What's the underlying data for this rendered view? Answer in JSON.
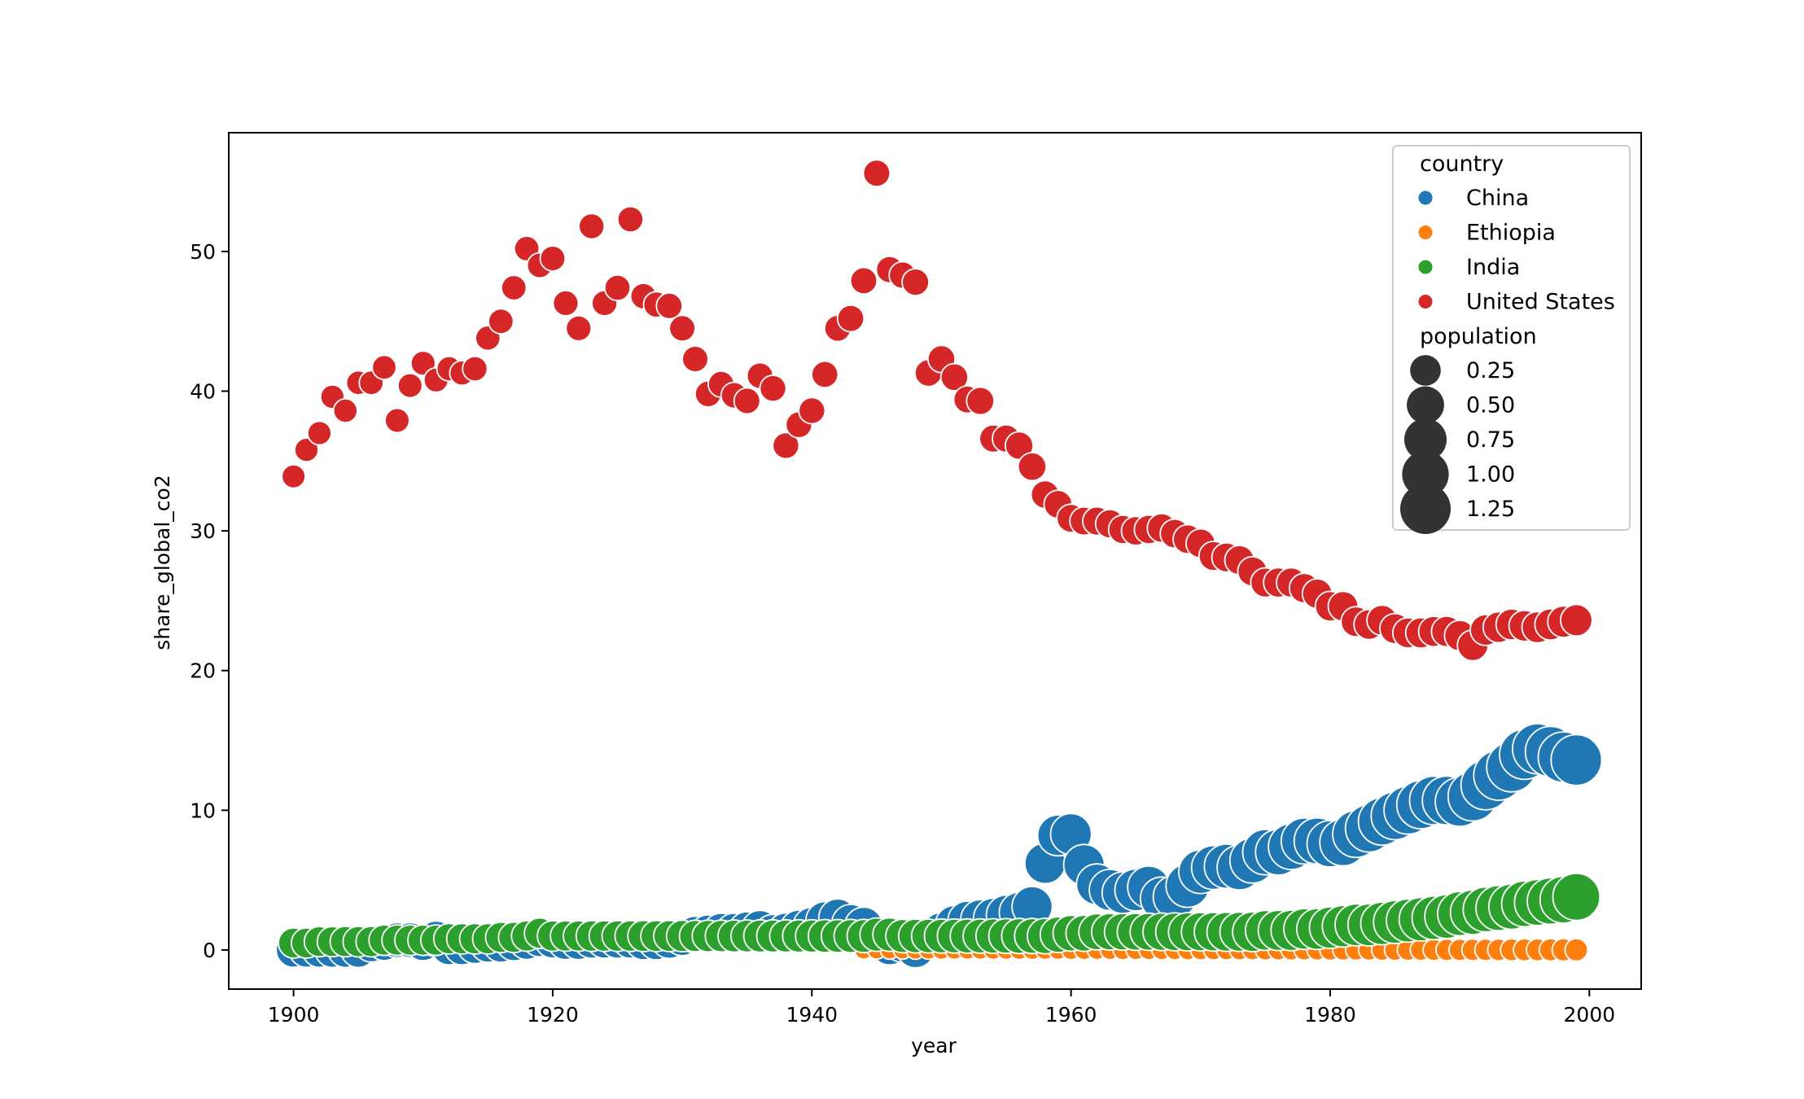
{
  "chart_data": {
    "type": "scatter",
    "title": "",
    "xlabel": "year",
    "ylabel": "share_global_co2",
    "xlim": [
      1895,
      2004
    ],
    "ylim": [
      -2.8,
      58.5
    ],
    "xticks": [
      1900,
      1920,
      1940,
      1960,
      1980,
      2000
    ],
    "yticks": [
      0,
      10,
      20,
      30,
      40,
      50
    ],
    "grid": false,
    "legend": {
      "placement": "top-right",
      "hue_title": "country",
      "size_title": "population",
      "size_entries": [
        "0.25",
        "0.50",
        "0.75",
        "1.00",
        "1.25"
      ],
      "size_values": [
        0.25,
        0.5,
        0.75,
        1.0,
        1.25
      ]
    },
    "series": [
      {
        "name": "China",
        "color": "#1f77b4",
        "x": [
          1900,
          1901,
          1902,
          1903,
          1904,
          1905,
          1906,
          1907,
          1908,
          1909,
          1910,
          1911,
          1912,
          1913,
          1914,
          1915,
          1916,
          1917,
          1918,
          1919,
          1920,
          1921,
          1922,
          1923,
          1924,
          1925,
          1926,
          1927,
          1928,
          1929,
          1930,
          1931,
          1932,
          1933,
          1934,
          1935,
          1936,
          1937,
          1938,
          1939,
          1940,
          1941,
          1942,
          1943,
          1944,
          1945,
          1946,
          1947,
          1948,
          1949,
          1950,
          1951,
          1952,
          1953,
          1954,
          1955,
          1956,
          1957,
          1958,
          1959,
          1960,
          1961,
          1962,
          1963,
          1964,
          1965,
          1966,
          1967,
          1968,
          1969,
          1970,
          1971,
          1972,
          1973,
          1974,
          1975,
          1976,
          1977,
          1978,
          1979,
          1980,
          1981,
          1982,
          1983,
          1984,
          1985,
          1986,
          1987,
          1988,
          1989,
          1990,
          1991,
          1992,
          1993,
          1994,
          1995,
          1996,
          1997,
          1998,
          1999
        ],
        "y": [
          0.0,
          0.0,
          0.0,
          0.0,
          0.0,
          0.0,
          0.4,
          0.5,
          0.7,
          0.7,
          0.5,
          0.8,
          0.2,
          0.2,
          0.3,
          0.4,
          0.4,
          0.5,
          0.6,
          0.8,
          0.7,
          0.6,
          0.6,
          0.7,
          0.7,
          0.7,
          0.7,
          0.6,
          0.6,
          0.7,
          0.9,
          1.1,
          1.2,
          1.3,
          1.3,
          1.4,
          1.5,
          1.2,
          1.3,
          1.5,
          1.7,
          2.1,
          2.3,
          1.9,
          1.7,
          0.8,
          0.3,
          0.5,
          0.1,
          0.8,
          1.3,
          1.8,
          2.1,
          2.2,
          2.3,
          2.5,
          2.7,
          3.1,
          6.2,
          8.2,
          8.3,
          6.1,
          4.7,
          4.3,
          4.1,
          4.3,
          4.5,
          3.7,
          3.8,
          4.6,
          5.6,
          5.9,
          6.0,
          5.9,
          6.4,
          7.0,
          7.0,
          7.4,
          7.8,
          7.8,
          7.6,
          7.7,
          8.3,
          8.7,
          9.2,
          9.6,
          10.0,
          10.4,
          10.7,
          10.7,
          10.6,
          11.0,
          11.8,
          12.5,
          13.1,
          14.0,
          14.4,
          14.2,
          13.8,
          13.6
        ],
        "population": [
          0.4,
          0.4,
          0.4,
          0.41,
          0.41,
          0.41,
          0.41,
          0.41,
          0.41,
          0.41,
          0.42,
          0.42,
          0.42,
          0.42,
          0.42,
          0.43,
          0.43,
          0.43,
          0.43,
          0.44,
          0.44,
          0.44,
          0.44,
          0.45,
          0.45,
          0.45,
          0.46,
          0.46,
          0.46,
          0.47,
          0.47,
          0.48,
          0.48,
          0.49,
          0.49,
          0.5,
          0.5,
          0.51,
          0.51,
          0.52,
          0.52,
          0.53,
          0.53,
          0.53,
          0.54,
          0.54,
          0.54,
          0.55,
          0.55,
          0.55,
          0.55,
          0.56,
          0.57,
          0.58,
          0.59,
          0.61,
          0.62,
          0.64,
          0.65,
          0.67,
          0.67,
          0.66,
          0.67,
          0.69,
          0.7,
          0.72,
          0.74,
          0.76,
          0.78,
          0.8,
          0.82,
          0.84,
          0.86,
          0.88,
          0.9,
          0.92,
          0.93,
          0.94,
          0.96,
          0.97,
          0.98,
          1.0,
          1.01,
          1.03,
          1.04,
          1.06,
          1.08,
          1.1,
          1.12,
          1.14,
          1.15,
          1.17,
          1.18,
          1.2,
          1.21,
          1.22,
          1.23,
          1.24,
          1.25,
          1.26
        ]
      },
      {
        "name": "Ethiopia",
        "color": "#ff7f0e",
        "x": [
          1944,
          1945,
          1946,
          1947,
          1948,
          1949,
          1950,
          1951,
          1952,
          1953,
          1954,
          1955,
          1956,
          1957,
          1958,
          1959,
          1960,
          1961,
          1962,
          1963,
          1964,
          1965,
          1966,
          1967,
          1968,
          1969,
          1970,
          1971,
          1972,
          1973,
          1974,
          1975,
          1976,
          1977,
          1978,
          1979,
          1980,
          1981,
          1982,
          1983,
          1984,
          1985,
          1986,
          1987,
          1988,
          1989,
          1990,
          1991,
          1992,
          1993,
          1994,
          1995,
          1996,
          1997,
          1998,
          1999
        ],
        "y": [
          0.01,
          0.01,
          0.01,
          0.01,
          0.01,
          0.01,
          0.01,
          0.01,
          0.01,
          0.01,
          0.01,
          0.01,
          0.01,
          0.01,
          0.01,
          0.01,
          0.01,
          0.01,
          0.01,
          0.01,
          0.01,
          0.01,
          0.01,
          0.01,
          0.01,
          0.01,
          0.01,
          0.01,
          0.01,
          0.01,
          0.01,
          0.01,
          0.01,
          0.01,
          0.01,
          0.01,
          0.01,
          0.01,
          0.01,
          0.01,
          0.01,
          0.01,
          0.01,
          0.01,
          0.01,
          0.01,
          0.01,
          0.01,
          0.01,
          0.01,
          0.01,
          0.01,
          0.01,
          0.01,
          0.01,
          0.01
        ],
        "population": [
          0.015,
          0.015,
          0.016,
          0.016,
          0.017,
          0.017,
          0.018,
          0.018,
          0.019,
          0.019,
          0.02,
          0.02,
          0.021,
          0.021,
          0.022,
          0.022,
          0.023,
          0.023,
          0.024,
          0.024,
          0.025,
          0.025,
          0.026,
          0.026,
          0.027,
          0.028,
          0.029,
          0.03,
          0.03,
          0.031,
          0.032,
          0.033,
          0.034,
          0.035,
          0.035,
          0.036,
          0.037,
          0.038,
          0.039,
          0.04,
          0.041,
          0.042,
          0.043,
          0.044,
          0.046,
          0.047,
          0.048,
          0.05,
          0.051,
          0.053,
          0.054,
          0.056,
          0.058,
          0.059,
          0.061,
          0.063
        ]
      },
      {
        "name": "India",
        "color": "#2ca02c",
        "x": [
          1900,
          1901,
          1902,
          1903,
          1904,
          1905,
          1906,
          1907,
          1908,
          1909,
          1910,
          1911,
          1912,
          1913,
          1914,
          1915,
          1916,
          1917,
          1918,
          1919,
          1920,
          1921,
          1922,
          1923,
          1924,
          1925,
          1926,
          1927,
          1928,
          1929,
          1930,
          1931,
          1932,
          1933,
          1934,
          1935,
          1936,
          1937,
          1938,
          1939,
          1940,
          1941,
          1942,
          1943,
          1944,
          1945,
          1946,
          1947,
          1948,
          1949,
          1950,
          1951,
          1952,
          1953,
          1954,
          1955,
          1956,
          1957,
          1958,
          1959,
          1960,
          1961,
          1962,
          1963,
          1964,
          1965,
          1966,
          1967,
          1968,
          1969,
          1970,
          1971,
          1972,
          1973,
          1974,
          1975,
          1976,
          1977,
          1978,
          1979,
          1980,
          1981,
          1982,
          1983,
          1984,
          1985,
          1986,
          1987,
          1988,
          1989,
          1990,
          1991,
          1992,
          1993,
          1994,
          1995,
          1996,
          1997,
          1998,
          1999
        ],
        "y": [
          0.5,
          0.5,
          0.6,
          0.6,
          0.6,
          0.6,
          0.6,
          0.7,
          0.7,
          0.7,
          0.7,
          0.7,
          0.8,
          0.8,
          0.8,
          0.8,
          0.9,
          0.9,
          1.0,
          1.2,
          1.0,
          1.0,
          1.0,
          1.0,
          1.0,
          1.0,
          1.0,
          1.0,
          1.0,
          1.0,
          1.0,
          1.0,
          1.0,
          1.0,
          1.0,
          1.0,
          1.0,
          1.0,
          1.0,
          1.0,
          1.0,
          1.0,
          1.0,
          1.0,
          1.0,
          1.1,
          1.1,
          1.0,
          1.0,
          1.0,
          1.0,
          1.0,
          1.0,
          1.0,
          1.0,
          1.0,
          1.0,
          1.0,
          1.0,
          1.1,
          1.2,
          1.2,
          1.3,
          1.3,
          1.3,
          1.3,
          1.3,
          1.3,
          1.3,
          1.3,
          1.3,
          1.3,
          1.3,
          1.3,
          1.3,
          1.4,
          1.4,
          1.4,
          1.5,
          1.5,
          1.6,
          1.7,
          1.8,
          1.8,
          1.9,
          2.0,
          2.1,
          2.2,
          2.3,
          2.4,
          2.6,
          2.7,
          2.9,
          3.0,
          3.1,
          3.3,
          3.4,
          3.5,
          3.6,
          3.8
        ],
        "population": [
          0.24,
          0.24,
          0.24,
          0.24,
          0.25,
          0.25,
          0.25,
          0.25,
          0.25,
          0.25,
          0.25,
          0.25,
          0.25,
          0.25,
          0.25,
          0.25,
          0.25,
          0.25,
          0.25,
          0.25,
          0.25,
          0.25,
          0.25,
          0.26,
          0.26,
          0.26,
          0.26,
          0.27,
          0.27,
          0.27,
          0.28,
          0.28,
          0.29,
          0.29,
          0.3,
          0.3,
          0.31,
          0.31,
          0.31,
          0.32,
          0.32,
          0.33,
          0.33,
          0.34,
          0.34,
          0.35,
          0.35,
          0.35,
          0.36,
          0.36,
          0.37,
          0.37,
          0.38,
          0.38,
          0.39,
          0.4,
          0.41,
          0.41,
          0.42,
          0.43,
          0.44,
          0.45,
          0.46,
          0.47,
          0.48,
          0.49,
          0.5,
          0.51,
          0.53,
          0.54,
          0.55,
          0.56,
          0.58,
          0.59,
          0.61,
          0.62,
          0.64,
          0.65,
          0.67,
          0.68,
          0.7,
          0.71,
          0.73,
          0.74,
          0.76,
          0.78,
          0.79,
          0.81,
          0.82,
          0.84,
          0.86,
          0.87,
          0.89,
          0.91,
          0.92,
          0.94,
          0.96,
          0.98,
          1.0,
          1.02
        ]
      },
      {
        "name": "United States",
        "color": "#d62728",
        "x": [
          1900,
          1901,
          1902,
          1903,
          1904,
          1905,
          1906,
          1907,
          1908,
          1909,
          1910,
          1911,
          1912,
          1913,
          1914,
          1915,
          1916,
          1917,
          1918,
          1919,
          1920,
          1921,
          1922,
          1923,
          1924,
          1925,
          1926,
          1927,
          1928,
          1929,
          1930,
          1931,
          1932,
          1933,
          1934,
          1935,
          1936,
          1937,
          1938,
          1939,
          1940,
          1941,
          1942,
          1943,
          1944,
          1945,
          1946,
          1947,
          1948,
          1949,
          1950,
          1951,
          1952,
          1953,
          1954,
          1955,
          1956,
          1957,
          1958,
          1959,
          1960,
          1961,
          1962,
          1963,
          1964,
          1965,
          1966,
          1967,
          1968,
          1969,
          1970,
          1971,
          1972,
          1973,
          1974,
          1975,
          1976,
          1977,
          1978,
          1979,
          1980,
          1981,
          1982,
          1983,
          1984,
          1985,
          1986,
          1987,
          1988,
          1989,
          1990,
          1991,
          1992,
          1993,
          1994,
          1995,
          1996,
          1997,
          1998,
          1999
        ],
        "y": [
          33.9,
          35.8,
          37.0,
          39.6,
          38.6,
          40.6,
          40.6,
          41.7,
          37.9,
          40.4,
          42.0,
          40.8,
          41.6,
          41.3,
          41.6,
          43.8,
          45.0,
          47.4,
          50.2,
          49.0,
          49.5,
          46.3,
          44.5,
          51.8,
          46.3,
          47.4,
          52.3,
          46.8,
          46.2,
          46.1,
          44.5,
          42.3,
          39.8,
          40.5,
          39.7,
          39.3,
          41.1,
          40.2,
          36.1,
          37.6,
          38.6,
          41.2,
          44.5,
          45.2,
          47.9,
          55.6,
          48.7,
          48.3,
          47.8,
          41.3,
          42.3,
          41.0,
          39.4,
          39.3,
          36.6,
          36.6,
          36.1,
          34.6,
          32.6,
          31.9,
          30.9,
          30.7,
          30.7,
          30.5,
          30.1,
          30.0,
          30.1,
          30.2,
          29.8,
          29.4,
          29.1,
          28.2,
          28.1,
          27.9,
          27.1,
          26.3,
          26.3,
          26.3,
          25.9,
          25.5,
          24.6,
          24.6,
          23.5,
          23.3,
          23.6,
          23.0,
          22.7,
          22.7,
          22.8,
          22.8,
          22.5,
          21.8,
          22.9,
          23.1,
          23.3,
          23.2,
          23.1,
          23.3,
          23.5,
          23.6
        ],
        "population": [
          0.076,
          0.078,
          0.079,
          0.081,
          0.082,
          0.084,
          0.086,
          0.087,
          0.089,
          0.091,
          0.092,
          0.094,
          0.095,
          0.097,
          0.099,
          0.1,
          0.102,
          0.103,
          0.104,
          0.105,
          0.106,
          0.108,
          0.11,
          0.112,
          0.114,
          0.116,
          0.117,
          0.119,
          0.12,
          0.122,
          0.123,
          0.124,
          0.125,
          0.126,
          0.126,
          0.127,
          0.128,
          0.129,
          0.13,
          0.131,
          0.132,
          0.133,
          0.134,
          0.136,
          0.138,
          0.14,
          0.141,
          0.144,
          0.147,
          0.149,
          0.152,
          0.155,
          0.158,
          0.16,
          0.163,
          0.166,
          0.169,
          0.172,
          0.175,
          0.178,
          0.181,
          0.184,
          0.187,
          0.19,
          0.192,
          0.195,
          0.197,
          0.199,
          0.201,
          0.203,
          0.205,
          0.208,
          0.21,
          0.212,
          0.214,
          0.216,
          0.218,
          0.22,
          0.222,
          0.225,
          0.228,
          0.23,
          0.232,
          0.234,
          0.236,
          0.238,
          0.24,
          0.243,
          0.245,
          0.247,
          0.25,
          0.253,
          0.256,
          0.259,
          0.262,
          0.265,
          0.268,
          0.271,
          0.274,
          0.277
        ]
      }
    ]
  }
}
